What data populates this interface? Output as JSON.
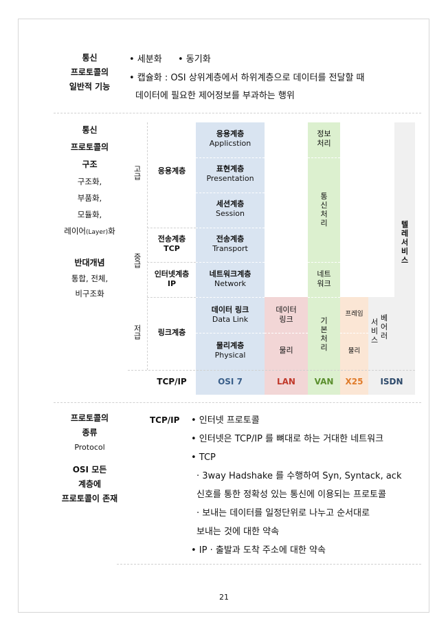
{
  "sec1": {
    "label": [
      "통신",
      "프로토콜의",
      "일반적 기능"
    ],
    "line1_a": "• 세분화",
    "line1_b": "• 동기화",
    "line2": "• 캡슐화 : OSI 상위계층에서 하위계층으로 데이터를 전달할 때",
    "line3": "데이터에 필요한 제어정보를 부과하는 행위"
  },
  "sec2": {
    "label": [
      "통신",
      "프로토콜의",
      "구조"
    ],
    "features": [
      "구조화,",
      "부품화,",
      "모듈화,"
    ],
    "layer_a": "레이어",
    "layer_b": "(Layer)",
    "layer_c": "화",
    "opp_title": "반대개념",
    "opp_items": [
      "통합, 전체,",
      "비구조화"
    ],
    "levels": {
      "high": "고급",
      "mid": "중급",
      "low": "저급"
    },
    "tcpip": {
      "app": "응용계층",
      "transport": [
        "전송계층",
        "TCP"
      ],
      "internet": [
        "인터넷계층",
        "IP"
      ],
      "link": "링크계층",
      "footer": "TCP/IP"
    },
    "osi": {
      "l7": [
        "응용계층",
        "Applicstion"
      ],
      "l6": [
        "표현계층",
        "Presentation"
      ],
      "l5": [
        "세션계층",
        "Session"
      ],
      "l4": [
        "전송계층",
        "Transport"
      ],
      "l3": [
        "네트워크계층",
        "Network"
      ],
      "l2": [
        "데이터 링크",
        "Data Link"
      ],
      "l1": [
        "물리계층",
        "Physical"
      ],
      "footer": "OSI 7"
    },
    "lan": {
      "top": [
        "데이터",
        "링크"
      ],
      "bottom": "물리",
      "footer": "LAN"
    },
    "van": {
      "top": [
        "정보",
        "처리"
      ],
      "mid": [
        "통",
        "신",
        "처",
        "리"
      ],
      "net": [
        "네트",
        "워크"
      ],
      "low": [
        "기",
        "본",
        "처",
        "리"
      ],
      "footer": "VAN"
    },
    "x25": {
      "top": "프레임",
      "bottom": "물리",
      "footer": "X25"
    },
    "isdn": {
      "left": [
        "서",
        "비",
        "스"
      ],
      "right": [
        "베",
        "어",
        "러"
      ],
      "footer": "ISDN"
    },
    "tele": [
      "텔",
      "레",
      "서",
      "비",
      "스"
    ],
    "colors": {
      "osi": "#d9e4f1",
      "lan": "#f2d6d6",
      "van": "#dcf0cf",
      "x25": "#fbe6d5",
      "isdn": "#f0f0f0",
      "lan_text": "#c0392b",
      "van_text": "#5b8f2e",
      "x25_text": "#e07b2a",
      "isdn_text": "#2e4a6b"
    }
  },
  "sec3": {
    "label": [
      "프로토콜의",
      "종류"
    ],
    "label_en": "Protocol",
    "label2": [
      "OSI 모든",
      "계층에",
      "프로토콜이 존재"
    ],
    "sub": "TCP/IP",
    "lines": [
      "• 인터넷 프로토콜",
      "• 인터넷은 TCP/IP 를 뼈대로 하는 거대한 네트워크",
      "• TCP",
      "· 3way Hadshake 를 수행하여 Syn, Syntack, ack",
      "신호를 통한 정확성 있는 통신에 이용되는 프로토콜",
      "· 보내는 데이터를 일정단위로 나누고 순서대로",
      "보내는 것에 대한 약속",
      "• IP · 출발과 도착 주소에 대한 약속"
    ]
  },
  "page_number": "21"
}
